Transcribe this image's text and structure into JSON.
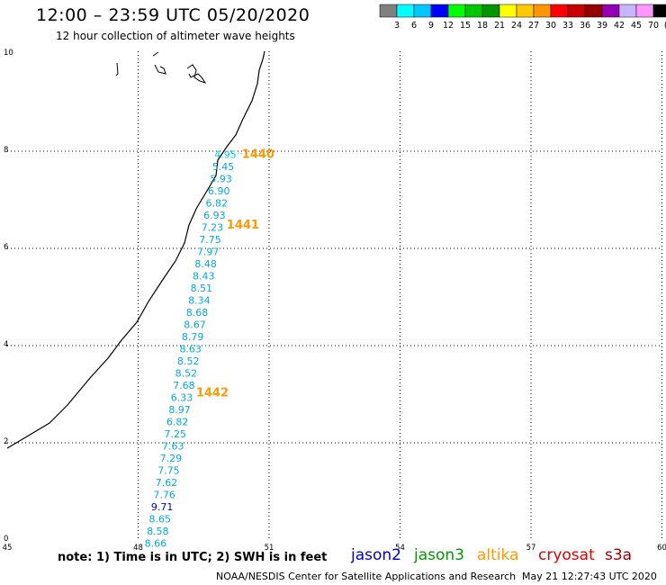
{
  "header": {
    "title": "12:00 – 23:59 UTC 05/20/2020",
    "subtitle": "12 hour collection of altimeter wave heights"
  },
  "legend": {
    "labels": [
      "3",
      "6",
      "9",
      "12",
      "15",
      "18",
      "21",
      "24",
      "27",
      "30",
      "33",
      "36",
      "39",
      "42",
      "45",
      "70",
      "(ft)"
    ],
    "colors": [
      "#808080",
      "#00ffff",
      "#00c8ff",
      "#0000ff",
      "#00ff00",
      "#00c800",
      "#009600",
      "#ffff00",
      "#ffc800",
      "#ff9600",
      "#ff0000",
      "#c80000",
      "#960000",
      "#9600b4",
      "#c8b4ff",
      "#ff96ff",
      "#000000"
    ]
  },
  "axes": {
    "x_ticks": [
      "45",
      "48",
      "51",
      "54",
      "57",
      "60"
    ],
    "y_ticks": [
      "0",
      "2",
      "4",
      "6",
      "8",
      "10"
    ]
  },
  "track": {
    "pass_labels": [
      {
        "text": "1440",
        "lat": 7.95,
        "lon": 50.75
      },
      {
        "text": "1441",
        "lat": 6.5,
        "lon": 50.4
      },
      {
        "text": "1442",
        "lat": 3.05,
        "lon": 49.7
      }
    ],
    "pass_color": "#ff9900",
    "points": [
      {
        "lat": 7.95,
        "lon": 50.0,
        "v": "4.95",
        "c": "#00cccc"
      },
      {
        "lat": 7.7,
        "lon": 49.95,
        "v": "5.45",
        "c": "#00aadd"
      },
      {
        "lat": 7.45,
        "lon": 49.9,
        "v": "5.93",
        "c": "#00aadd"
      },
      {
        "lat": 7.2,
        "lon": 49.85,
        "v": "6.90",
        "c": "#00aadd"
      },
      {
        "lat": 6.95,
        "lon": 49.8,
        "v": "6.82",
        "c": "#00aadd"
      },
      {
        "lat": 6.7,
        "lon": 49.75,
        "v": "6.93",
        "c": "#00aadd"
      },
      {
        "lat": 6.45,
        "lon": 49.7,
        "v": "7.23",
        "c": "#00aadd"
      },
      {
        "lat": 6.2,
        "lon": 49.65,
        "v": "7.75",
        "c": "#00aadd"
      },
      {
        "lat": 5.95,
        "lon": 49.6,
        "v": "7.97",
        "c": "#00aadd"
      },
      {
        "lat": 5.7,
        "lon": 49.55,
        "v": "8.48",
        "c": "#00aadd"
      },
      {
        "lat": 5.45,
        "lon": 49.5,
        "v": "8.43",
        "c": "#00aadd"
      },
      {
        "lat": 5.2,
        "lon": 49.45,
        "v": "8.51",
        "c": "#00aadd"
      },
      {
        "lat": 4.95,
        "lon": 49.4,
        "v": "8.34",
        "c": "#00aadd"
      },
      {
        "lat": 4.7,
        "lon": 49.35,
        "v": "8.68",
        "c": "#00aadd"
      },
      {
        "lat": 4.45,
        "lon": 49.3,
        "v": "8.67",
        "c": "#00aadd"
      },
      {
        "lat": 4.2,
        "lon": 49.25,
        "v": "8.79",
        "c": "#00aadd"
      },
      {
        "lat": 3.95,
        "lon": 49.2,
        "v": "8.63",
        "c": "#00aadd"
      },
      {
        "lat": 3.7,
        "lon": 49.15,
        "v": "8.52",
        "c": "#00aadd"
      },
      {
        "lat": 3.45,
        "lon": 49.1,
        "v": "8.52",
        "c": "#00aadd"
      },
      {
        "lat": 3.2,
        "lon": 49.05,
        "v": "7.68",
        "c": "#00aadd"
      },
      {
        "lat": 2.95,
        "lon": 49.0,
        "v": "6.33",
        "c": "#00aadd"
      },
      {
        "lat": 2.7,
        "lon": 48.95,
        "v": "8.97",
        "c": "#00aadd"
      },
      {
        "lat": 2.45,
        "lon": 48.9,
        "v": "6.82",
        "c": "#00aadd"
      },
      {
        "lat": 2.2,
        "lon": 48.85,
        "v": "7.25",
        "c": "#00aadd"
      },
      {
        "lat": 1.95,
        "lon": 48.8,
        "v": "7.63",
        "c": "#00aadd"
      },
      {
        "lat": 1.7,
        "lon": 48.75,
        "v": "7.29",
        "c": "#00aadd"
      },
      {
        "lat": 1.45,
        "lon": 48.7,
        "v": "7.75",
        "c": "#00aadd"
      },
      {
        "lat": 1.2,
        "lon": 48.65,
        "v": "7.62",
        "c": "#00aadd"
      },
      {
        "lat": 0.95,
        "lon": 48.6,
        "v": "7.76",
        "c": "#00aadd"
      },
      {
        "lat": 0.7,
        "lon": 48.55,
        "v": "9.71",
        "c": "#0000cc"
      },
      {
        "lat": 0.45,
        "lon": 48.5,
        "v": "8.65",
        "c": "#00aadd"
      },
      {
        "lat": 0.2,
        "lon": 48.45,
        "v": "8.58",
        "c": "#00aadd"
      },
      {
        "lat": -0.05,
        "lon": 48.4,
        "v": "8.66",
        "c": "#00aadd"
      }
    ]
  },
  "footer": {
    "note": "note:  1) Time is in UTC;  2) SWH is in feet",
    "satellites": [
      {
        "name": "jason2",
        "color": "#0000cc"
      },
      {
        "name": "jason3",
        "color": "#009900"
      },
      {
        "name": "altika",
        "color": "#ff9900"
      },
      {
        "name": "cryosat",
        "color": "#dd0000"
      },
      {
        "name": "s3a",
        "color": "#990000"
      }
    ],
    "credit": "NOAA/NESDIS Center for Satellite Applications and Research",
    "timestamp": "May 21 12:27:43 UTC 2020"
  }
}
